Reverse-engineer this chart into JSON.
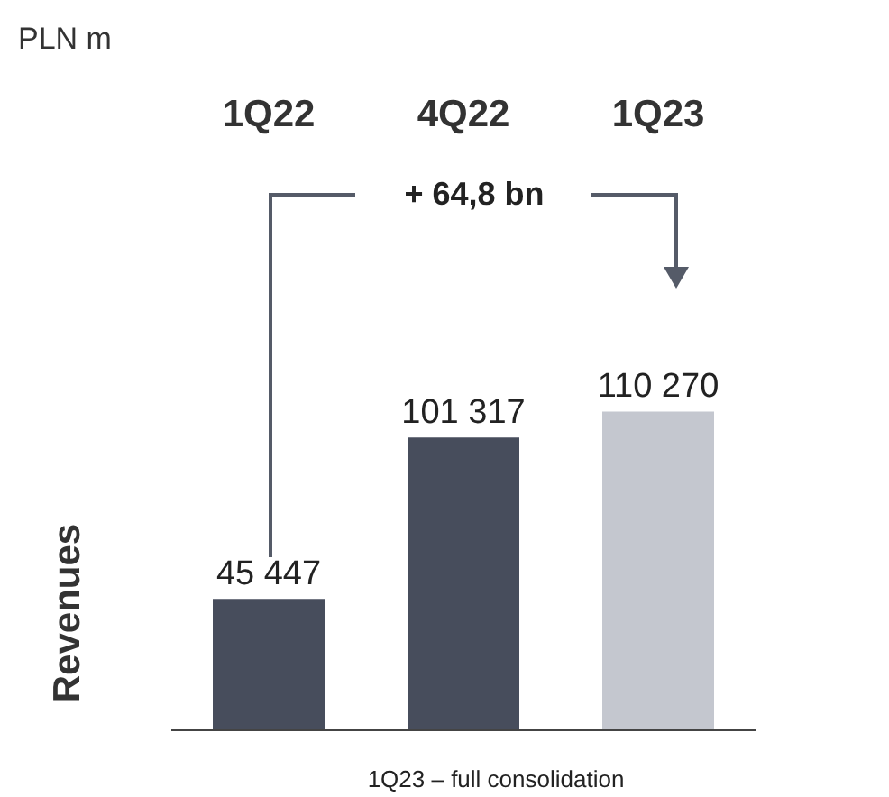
{
  "chart_data": {
    "type": "bar",
    "subtitle": "PLN m",
    "ylabel": "Revenues",
    "categories": [
      "1Q22",
      "4Q22",
      "1Q23"
    ],
    "values": [
      45447,
      101317,
      110270
    ],
    "colors": [
      "#474d5c",
      "#474d5c",
      "#c4c7cf"
    ],
    "value_labels": [
      "45 447",
      "101 317",
      "110 270"
    ],
    "annotations": [
      "+ 64,8 bn",
      "1Q23 – full consolidation"
    ],
    "grid": false,
    "legend": false
  }
}
